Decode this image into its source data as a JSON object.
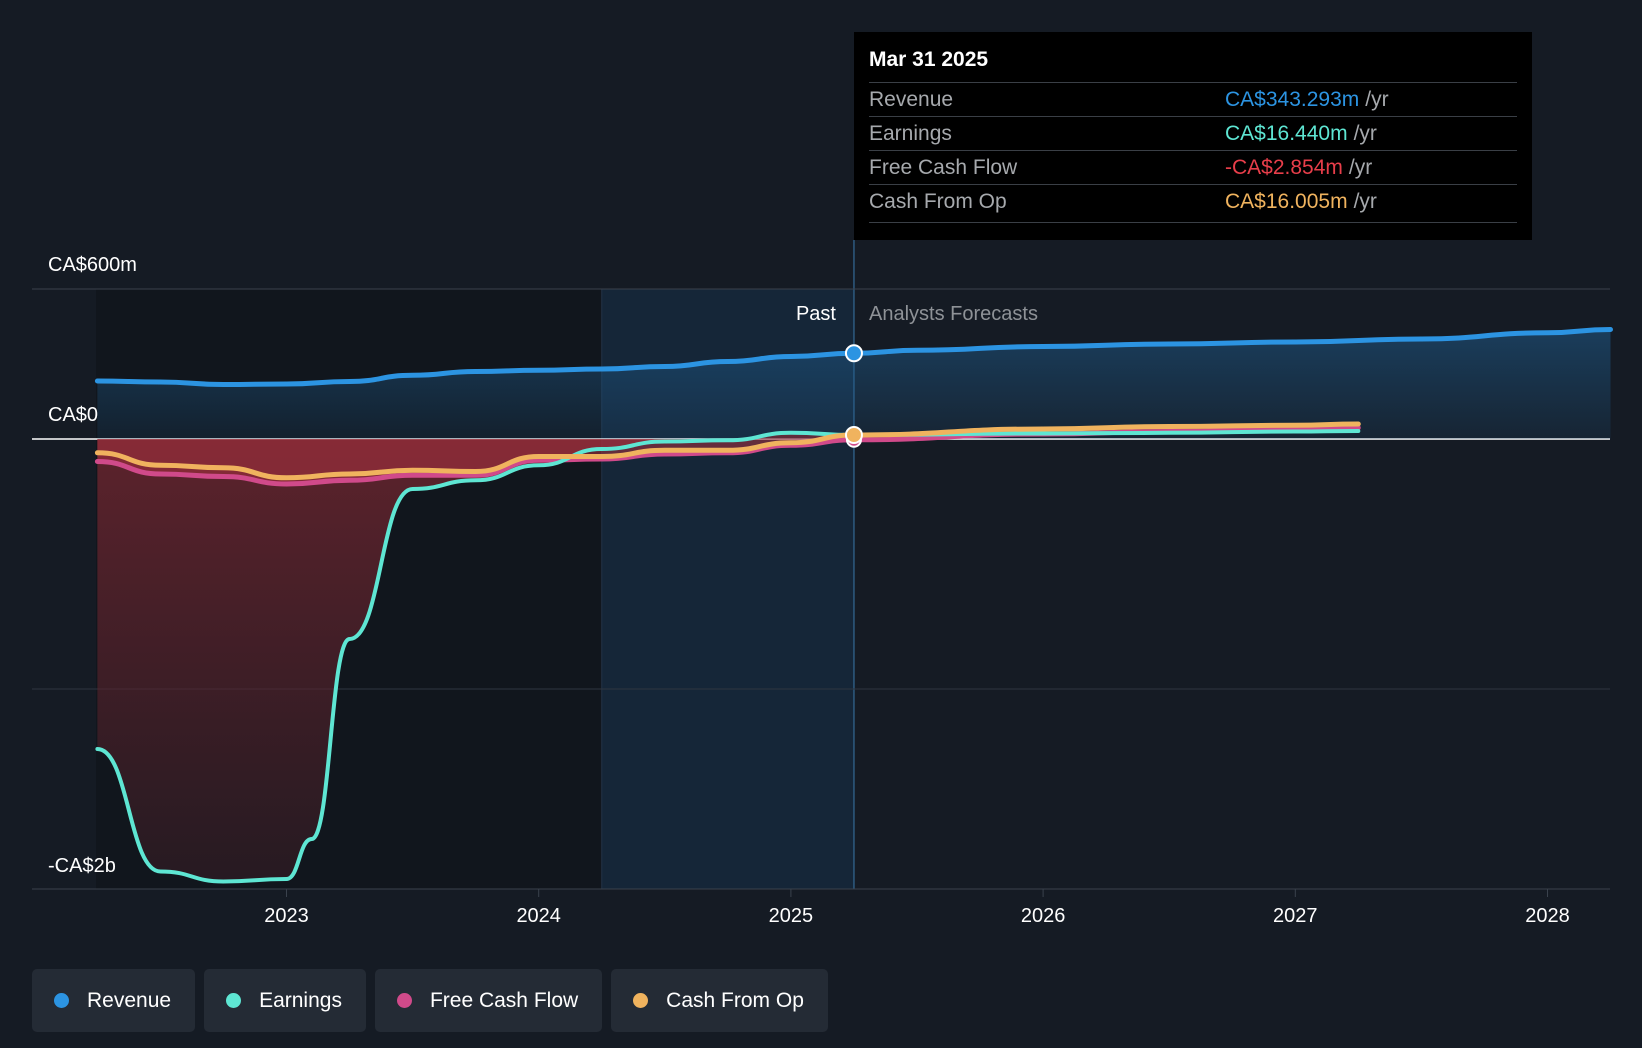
{
  "tooltip": {
    "date": "Mar 31 2025",
    "rows": [
      {
        "name": "Revenue",
        "value": "CA$343.293m",
        "unit": "/yr",
        "color": "#2c94e2"
      },
      {
        "name": "Earnings",
        "value": "CA$16.440m",
        "unit": "/yr",
        "color": "#5ee6d3"
      },
      {
        "name": "Free Cash Flow",
        "value": "-CA$2.854m",
        "unit": "/yr",
        "color": "#e83e4a"
      },
      {
        "name": "Cash From Op",
        "value": "CA$16.005m",
        "unit": "/yr",
        "color": "#f0b35e"
      }
    ]
  },
  "legend": [
    {
      "label": "Revenue",
      "color": "#2c94e2"
    },
    {
      "label": "Earnings",
      "color": "#5ee6d3"
    },
    {
      "label": "Free Cash Flow",
      "color": "#d04a8a"
    },
    {
      "label": "Cash From Op",
      "color": "#f0b35e"
    }
  ],
  "chart_data": {
    "type": "line",
    "title": "",
    "xlabel": "",
    "ylabel": "",
    "y_tick_labels": [
      "CA$600m",
      "CA$0",
      "-CA$2b"
    ],
    "x_tick_labels": [
      "2023",
      "2024",
      "2025",
      "2026",
      "2027",
      "2028"
    ],
    "x_range": [
      2022.25,
      2028.25
    ],
    "y_range": [
      -1800,
      600
    ],
    "grid": true,
    "past_label": "Past",
    "forecast_label": "Analysts Forecasts",
    "divider_x": 2025.25,
    "highlight_start_x": 2024.25,
    "legend_position": "bottom",
    "series": [
      {
        "name": "Revenue",
        "color": "#2c94e2",
        "x": [
          2022.25,
          2022.5,
          2022.75,
          2023.0,
          2023.25,
          2023.5,
          2023.75,
          2024.0,
          2024.25,
          2024.5,
          2024.75,
          2025.0,
          2025.25,
          2025.5,
          2026.0,
          2026.5,
          2027.0,
          2027.5,
          2028.0,
          2028.25
        ],
        "y": [
          232,
          228,
          218,
          220,
          230,
          255,
          270,
          275,
          280,
          290,
          310,
          330,
          343,
          355,
          370,
          380,
          388,
          400,
          425,
          438
        ]
      },
      {
        "name": "Earnings",
        "color": "#5ee6d3",
        "x": [
          2022.25,
          2022.5,
          2022.75,
          2023.0,
          2023.1,
          2023.25,
          2023.5,
          2023.75,
          2024.0,
          2024.25,
          2024.5,
          2024.75,
          2025.0,
          2025.25,
          2026.0,
          2026.5,
          2027.0,
          2027.25
        ],
        "y": [
          -1240,
          -1730,
          -1770,
          -1760,
          -1600,
          -800,
          -200,
          -165,
          -105,
          -40,
          -10,
          -5,
          25,
          16,
          22,
          25,
          30,
          32
        ]
      },
      {
        "name": "Free Cash Flow",
        "color": "#d04a8a",
        "x": [
          2022.25,
          2022.5,
          2022.75,
          2023.0,
          2023.25,
          2023.5,
          2023.75,
          2024.0,
          2024.25,
          2024.5,
          2024.75,
          2025.0,
          2025.25,
          2026.0,
          2026.5,
          2027.0,
          2027.25
        ],
        "y": [
          -90,
          -140,
          -150,
          -180,
          -165,
          -145,
          -145,
          -85,
          -80,
          -60,
          -55,
          -25,
          -3,
          20,
          30,
          40,
          45
        ]
      },
      {
        "name": "Cash From Op",
        "color": "#f0b35e",
        "x": [
          2022.25,
          2022.5,
          2022.75,
          2023.0,
          2023.25,
          2023.5,
          2023.75,
          2024.0,
          2024.25,
          2024.5,
          2024.75,
          2025.0,
          2025.25,
          2026.0,
          2026.5,
          2027.0,
          2027.25
        ],
        "y": [
          -55,
          -105,
          -115,
          -155,
          -140,
          -125,
          -130,
          -70,
          -70,
          -45,
          -45,
          -15,
          16,
          40,
          50,
          55,
          60
        ]
      }
    ]
  }
}
